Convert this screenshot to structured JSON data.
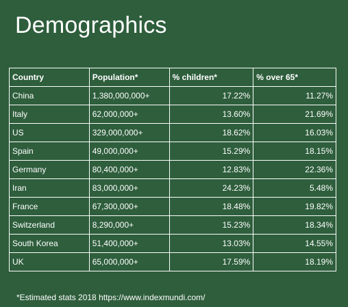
{
  "slide": {
    "title": "Demographics",
    "footnote": "*Estimated stats 2018 https://www.indexmundi.com/"
  },
  "table": {
    "headers": [
      "Country",
      "Population*",
      "% children*",
      "% over 65*"
    ],
    "rows": [
      [
        "China",
        "1,380,000,000+",
        "17.22%",
        "11.27%"
      ],
      [
        "Italy",
        "62,000,000+",
        "13.60%",
        "21.69%"
      ],
      [
        "US",
        "329,000,000+",
        "18.62%",
        "16.03%"
      ],
      [
        "Spain",
        "49,000,000+",
        "15.29%",
        "18.15%"
      ],
      [
        "Germany",
        "80,400,000+",
        "12.83%",
        "22.36%"
      ],
      [
        "Iran",
        "83,000,000+",
        "24.23%",
        "5.48%"
      ],
      [
        "France",
        "67,300,000+",
        "18.48%",
        "19.82%"
      ],
      [
        "Switzerland",
        "8,290,000+",
        "15.23%",
        "18.34%"
      ],
      [
        "South Korea",
        "51,400,000+",
        "13.03%",
        "14.55%"
      ],
      [
        "UK",
        "65,000,000+",
        "17.59%",
        "18.19%"
      ]
    ]
  },
  "colors": {
    "background": "#2e5e3c",
    "text": "#ffffff",
    "border": "#ffffff"
  }
}
